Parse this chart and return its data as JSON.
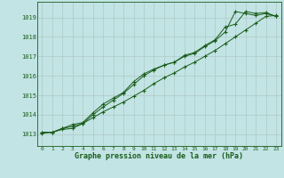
{
  "title": "Graphe pression niveau de la mer (hPa)",
  "bg_color": "#c2e4e4",
  "grid_color": "#b0c8c8",
  "line_color": "#1a5c1a",
  "xlim": [
    -0.5,
    23.5
  ],
  "ylim": [
    1012.4,
    1019.8
  ],
  "yticks": [
    1013,
    1014,
    1015,
    1016,
    1017,
    1018,
    1019
  ],
  "xticks": [
    0,
    1,
    2,
    3,
    4,
    5,
    6,
    7,
    8,
    9,
    10,
    11,
    12,
    13,
    14,
    15,
    16,
    17,
    18,
    19,
    20,
    21,
    22,
    23
  ],
  "series1": [
    1013.1,
    1013.1,
    1013.3,
    1013.4,
    1013.55,
    1013.85,
    1014.15,
    1014.4,
    1014.65,
    1014.95,
    1015.25,
    1015.6,
    1015.9,
    1016.15,
    1016.45,
    1016.7,
    1017.0,
    1017.3,
    1017.65,
    1018.0,
    1018.35,
    1018.7,
    1019.05,
    1019.1
  ],
  "series2": [
    1013.1,
    1013.1,
    1013.25,
    1013.3,
    1013.55,
    1014.0,
    1014.4,
    1014.75,
    1015.1,
    1015.55,
    1016.0,
    1016.3,
    1016.55,
    1016.7,
    1017.0,
    1017.15,
    1017.5,
    1017.8,
    1018.25,
    1019.3,
    1019.2,
    1019.1,
    1019.2,
    1019.05
  ],
  "series3": [
    1013.05,
    1013.1,
    1013.3,
    1013.5,
    1013.6,
    1014.1,
    1014.55,
    1014.85,
    1015.15,
    1015.7,
    1016.1,
    1016.35,
    1016.55,
    1016.7,
    1017.05,
    1017.2,
    1017.55,
    1017.85,
    1018.5,
    1018.65,
    1019.3,
    1019.2,
    1019.25,
    1019.05
  ]
}
